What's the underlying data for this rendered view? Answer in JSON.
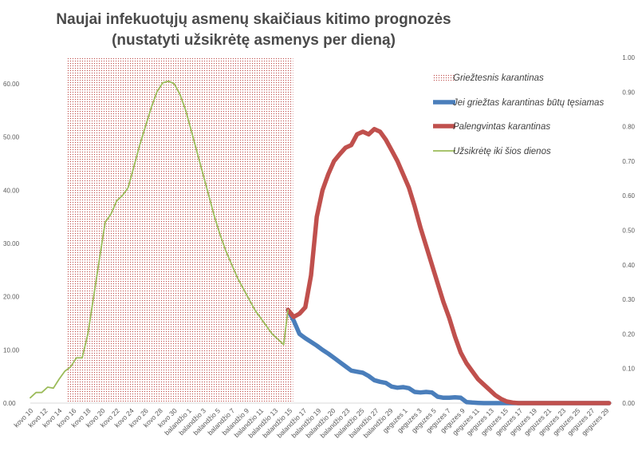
{
  "chart_data": {
    "type": "line",
    "title_line1": "Naujai infekuotųjų asmenų skaičiaus kitimo prognozės",
    "title_line2": "(nustatyti užsikrėtę asmenys per dieną)",
    "categories": [
      "kovo 10",
      "kovo 12",
      "kovo 14",
      "kovo 16",
      "kovo 18",
      "kovo 20",
      "kovo 22",
      "kovo 24",
      "kovo 26",
      "kovo 28",
      "kovo 30",
      "balandžio 1",
      "balandžio 3",
      "balandžio 5",
      "balandžio 7",
      "balandžio 9",
      "balandžio 11",
      "balandžio 13",
      "balandžio 15",
      "balandžio 17",
      "balandžio 19",
      "balandžio 20",
      "balandžio 23",
      "balandžio 25",
      "balandžio 27",
      "balandžio 29",
      "geguzes 1",
      "geguzes 3",
      "geguzes 5",
      "geguzes 7",
      "geguzes 9",
      "geguzes 11",
      "geguzes 13",
      "geguzes 15",
      "geguzes 17",
      "geguzes 19",
      "geguzes 21",
      "geguzes 23",
      "geguzes 25",
      "geguzes 27",
      "geguzes 29"
    ],
    "left_axis": {
      "min": 0,
      "max": 60,
      "ticks": [
        "0.00",
        "10.00",
        "20.00",
        "30.00",
        "40.00",
        "50.00",
        "60.00"
      ]
    },
    "right_axis": {
      "min": 0,
      "max": 1,
      "ticks": [
        "0.00",
        "0.10",
        "0.20",
        "0.30",
        "0.40",
        "0.50",
        "0.60",
        "0.70",
        "0.80",
        "0.90",
        "1.00"
      ]
    },
    "shaded_region": {
      "label": "Griežtesnis karantinas",
      "from_index": 2.5,
      "to_index": 18.25,
      "color": "#c0392b"
    },
    "series": [
      {
        "name": "Jei griežtas karantinas būtų tęsiamas",
        "color": "#4a7ebb",
        "axis": "left",
        "x": [
          17.9,
          18.3,
          18.7,
          19.1,
          19.5,
          19.9,
          20.3,
          20.7,
          21.1,
          21.5,
          21.9,
          22.3,
          22.7,
          23.1,
          23.5,
          23.9,
          24.3,
          24.7,
          25.1,
          25.5,
          25.9,
          26.3,
          26.7,
          27.1,
          27.5,
          27.9,
          28.3,
          28.7,
          29.1,
          29.5,
          29.9,
          30.3,
          30.7,
          31.1,
          31.5,
          31.9,
          32.5,
          33.5,
          34.5,
          35.5,
          36.5,
          37.5,
          38.5,
          39.5,
          40.2
        ],
        "values": [
          17.5,
          15.5,
          13.0,
          12.2,
          11.5,
          10.8,
          10.0,
          9.3,
          8.5,
          7.7,
          6.9,
          6.1,
          5.9,
          5.7,
          5.1,
          4.3,
          4.0,
          3.8,
          3.1,
          2.9,
          3.0,
          2.8,
          2.1,
          2.0,
          2.1,
          2.0,
          1.2,
          1.0,
          1.0,
          1.1,
          1.0,
          0.2,
          0.1,
          0.05,
          0.0,
          0.0,
          0.0,
          0.0,
          0.0,
          0.0,
          0.0,
          0.0,
          0.0,
          0.0,
          0.0
        ]
      },
      {
        "name": "Palengvintas karantinas",
        "color": "#c0504d",
        "axis": "left",
        "x": [
          17.9,
          18.3,
          18.7,
          19.1,
          19.5,
          19.9,
          20.3,
          20.7,
          21.1,
          21.5,
          21.9,
          22.3,
          22.7,
          23.1,
          23.5,
          23.9,
          24.3,
          24.7,
          25.1,
          25.5,
          25.9,
          26.3,
          26.7,
          27.1,
          27.5,
          27.9,
          28.3,
          28.7,
          29.1,
          29.5,
          29.9,
          30.3,
          30.7,
          31.1,
          31.5,
          31.9,
          32.3,
          32.7,
          33.1,
          33.5,
          33.9,
          34.3,
          34.7,
          35.1,
          35.5,
          35.9,
          36.5,
          37.5,
          38.5,
          39.5,
          40.2
        ],
        "values": [
          17.5,
          16.2,
          16.8,
          18.0,
          24.0,
          35.0,
          40.0,
          43.0,
          45.5,
          46.8,
          48.0,
          48.5,
          50.5,
          51.0,
          50.5,
          51.5,
          51.0,
          49.5,
          47.5,
          45.5,
          43.0,
          40.5,
          37.0,
          33.0,
          29.5,
          26.0,
          22.5,
          19.0,
          16.0,
          12.5,
          9.5,
          7.5,
          6.0,
          4.5,
          3.5,
          2.5,
          1.5,
          0.8,
          0.3,
          0.1,
          0.0,
          0.0,
          0.0,
          0.0,
          0.0,
          0.0,
          0.0,
          0.0,
          0.0,
          0.0,
          0.0
        ]
      },
      {
        "name": "Užsikrėtę iki šios dienos",
        "color": "#9bbb59",
        "axis": "left",
        "x": [
          0,
          0.4,
          0.8,
          1.2,
          1.6,
          2.0,
          2.4,
          2.8,
          3.2,
          3.6,
          4.0,
          4.4,
          4.8,
          5.2,
          5.6,
          6.0,
          6.4,
          6.8,
          7.2,
          7.6,
          8.0,
          8.4,
          8.8,
          9.2,
          9.6,
          10.0,
          10.4,
          10.8,
          11.2,
          11.6,
          12.0,
          12.4,
          12.8,
          13.2,
          13.6,
          14.0,
          14.4,
          14.8,
          15.2,
          15.6,
          16.0,
          16.4,
          16.8,
          17.2,
          17.6,
          17.9
        ],
        "values": [
          1.0,
          2.0,
          2.0,
          3.0,
          2.8,
          4.5,
          6.0,
          6.8,
          8.5,
          8.5,
          13.0,
          20.0,
          27.0,
          34.0,
          35.5,
          38.0,
          39.0,
          40.5,
          44.5,
          48.5,
          52.0,
          55.5,
          58.5,
          60.2,
          60.5,
          60.0,
          58.0,
          55.0,
          51.0,
          47.0,
          43.0,
          39.0,
          35.0,
          31.5,
          28.5,
          26.0,
          23.5,
          21.5,
          19.5,
          17.5,
          16.0,
          14.5,
          13.0,
          12.0,
          11.0,
          17.5
        ]
      }
    ],
    "legend": {
      "placement": "right"
    }
  }
}
